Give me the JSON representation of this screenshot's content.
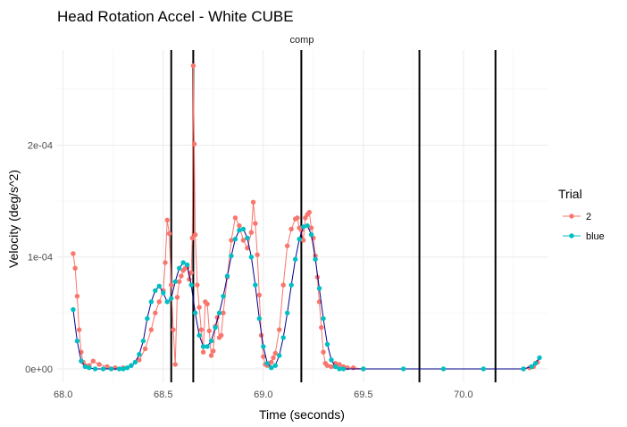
{
  "chart_data": {
    "type": "line",
    "title": "Head Rotation Accel - White CUBE",
    "facet_label": "comp",
    "xlabel": "Time (seconds)",
    "ylabel": "Velocity (deg/s^2)",
    "xlim": [
      67.97,
      70.42
    ],
    "ylim": [
      -1.2e-05,
      0.000285
    ],
    "x_ticks": [
      {
        "value": 68.0,
        "label": "68.0"
      },
      {
        "value": 68.5,
        "label": "68.5"
      },
      {
        "value": 69.0,
        "label": "69.0"
      },
      {
        "value": 69.5,
        "label": "69.5"
      },
      {
        "value": 70.0,
        "label": "70.0"
      }
    ],
    "y_ticks": [
      {
        "value": 0,
        "label": "0e+00"
      },
      {
        "value": 0.0001,
        "label": "1e-04"
      },
      {
        "value": 0.0002,
        "label": "2e-04"
      }
    ],
    "grid": true,
    "legend": {
      "title": "Trial",
      "position": "right"
    },
    "vlines": [
      68.54,
      68.65,
      69.19,
      69.78,
      70.16
    ],
    "series": [
      {
        "name": "2",
        "color": "#F8766D",
        "x": [
          68.05,
          68.06,
          68.07,
          68.08,
          68.09,
          68.1,
          68.11,
          68.13,
          68.15,
          68.18,
          68.22,
          68.26,
          68.3,
          68.34,
          68.38,
          68.41,
          68.44,
          68.46,
          68.48,
          68.5,
          68.51,
          68.52,
          68.53,
          68.54,
          68.55,
          68.56,
          68.57,
          68.58,
          68.59,
          68.6,
          68.61,
          68.62,
          68.63,
          68.64,
          68.645,
          68.65,
          68.655,
          68.66,
          68.67,
          68.68,
          68.69,
          68.7,
          68.71,
          68.72,
          68.73,
          68.74,
          68.75,
          68.76,
          68.77,
          68.78,
          68.79,
          68.8,
          68.82,
          68.84,
          68.86,
          68.88,
          68.9,
          68.92,
          68.94,
          68.95,
          68.96,
          68.97,
          68.98,
          68.99,
          69.0,
          69.01,
          69.02,
          69.03,
          69.04,
          69.05,
          69.06,
          69.08,
          69.1,
          69.12,
          69.14,
          69.16,
          69.17,
          69.18,
          69.19,
          69.2,
          69.21,
          69.22,
          69.23,
          69.24,
          69.25,
          69.26,
          69.27,
          69.28,
          69.29,
          69.3,
          69.31,
          69.32,
          69.34,
          69.36,
          69.38,
          69.4,
          69.42,
          69.45,
          69.5,
          70.3,
          70.33,
          70.35,
          70.37
        ],
        "y": [
          0.000103,
          9e-05,
          6.5e-05,
          3.5e-05,
          1.5e-05,
          6e-06,
          3e-06,
          3e-06,
          7e-06,
          4e-06,
          2e-06,
          1e-06,
          1e-06,
          3e-06,
          8e-06,
          1.8e-05,
          3.5e-05,
          5e-05,
          6e-05,
          7e-05,
          9.5e-05,
          0.000133,
          0.000121,
          7.5e-05,
          3.5e-05,
          4e-06,
          6.4e-05,
          7.8e-05,
          8.3e-05,
          8.8e-05,
          9e-05,
          9.1e-05,
          8e-05,
          8.6e-05,
          0.000117,
          0.000271,
          0.000201,
          0.00012,
          7.5e-05,
          5.5e-05,
          3.5e-05,
          1.5e-05,
          6e-05,
          5.8e-05,
          3.4e-05,
          1.2e-05,
          1.6e-05,
          3.8e-05,
          4.6e-05,
          2.8e-05,
          3e-05,
          5e-05,
          8.2e-05,
          0.000115,
          0.000135,
          0.000128,
          0.000115,
          0.000108,
          0.000122,
          0.000149,
          0.00013,
          0.000102,
          6.6e-05,
          3e-05,
          1.1e-05,
          4e-06,
          3e-06,
          5e-06,
          6e-06,
          1e-05,
          1.4e-05,
          3.5e-05,
          7.5e-05,
          0.00011,
          0.000125,
          0.000134,
          0.000135,
          0.000126,
          0.000124,
          0.000115,
          0.000135,
          0.000138,
          0.00014,
          0.000126,
          0.000117,
          0.000101,
          8.2e-05,
          6e-05,
          3.7e-05,
          1.5e-05,
          5e-06,
          3e-06,
          2e-06,
          5e-06,
          4e-06,
          2e-06,
          1e-06,
          1e-06,
          0.0,
          0.0,
          1e-06,
          2e-06,
          6e-06
        ]
      },
      {
        "name": "blue",
        "color": "#00BFC4",
        "line_color": "#00008B",
        "x": [
          68.05,
          68.07,
          68.09,
          68.11,
          68.13,
          68.16,
          68.2,
          68.24,
          68.28,
          68.3,
          68.32,
          68.34,
          68.36,
          68.38,
          68.4,
          68.42,
          68.44,
          68.46,
          68.48,
          68.5,
          68.52,
          68.54,
          68.56,
          68.58,
          68.6,
          68.62,
          68.64,
          68.66,
          68.68,
          68.7,
          68.72,
          68.74,
          68.76,
          68.78,
          68.8,
          68.82,
          68.84,
          68.86,
          68.88,
          68.9,
          68.92,
          68.94,
          68.96,
          68.98,
          69.0,
          69.02,
          69.04,
          69.06,
          69.08,
          69.1,
          69.12,
          69.14,
          69.16,
          69.18,
          69.2,
          69.22,
          69.24,
          69.26,
          69.28,
          69.3,
          69.32,
          69.34,
          69.36,
          69.38,
          69.4,
          69.5,
          69.7,
          69.9,
          70.1,
          70.3,
          70.34,
          70.36,
          70.38
        ],
        "y": [
          5.3e-05,
          2.5e-05,
          7e-06,
          2e-06,
          1e-06,
          0.0,
          0.0,
          0.0,
          0.0,
          0.0,
          1e-06,
          3e-06,
          6e-06,
          1.3e-05,
          2.5e-05,
          4.5e-05,
          6e-05,
          7e-05,
          7.4e-05,
          6.8e-05,
          6e-05,
          6.3e-05,
          7.8e-05,
          9e-05,
          9.5e-05,
          9.3e-05,
          7.5e-05,
          5e-05,
          3e-05,
          2e-05,
          2e-05,
          2.5e-05,
          3.7e-05,
          5e-05,
          6.5e-05,
          8.3e-05,
          0.000101,
          0.000116,
          0.000124,
          0.000125,
          0.000117,
          0.0001,
          7.5e-05,
          4.5e-05,
          2e-05,
          5e-06,
          1e-06,
          3e-06,
          1.2e-05,
          2.8e-05,
          5e-05,
          7.5e-05,
          9.8e-05,
          0.000116,
          0.000127,
          0.000128,
          0.00012,
          9.8e-05,
          7.2e-05,
          4.5e-05,
          2.2e-05,
          8e-06,
          2e-06,
          0.0,
          0.0,
          0.0,
          0.0,
          0.0,
          0.0,
          0.0,
          2e-06,
          5e-06,
          1e-05
        ]
      }
    ]
  }
}
